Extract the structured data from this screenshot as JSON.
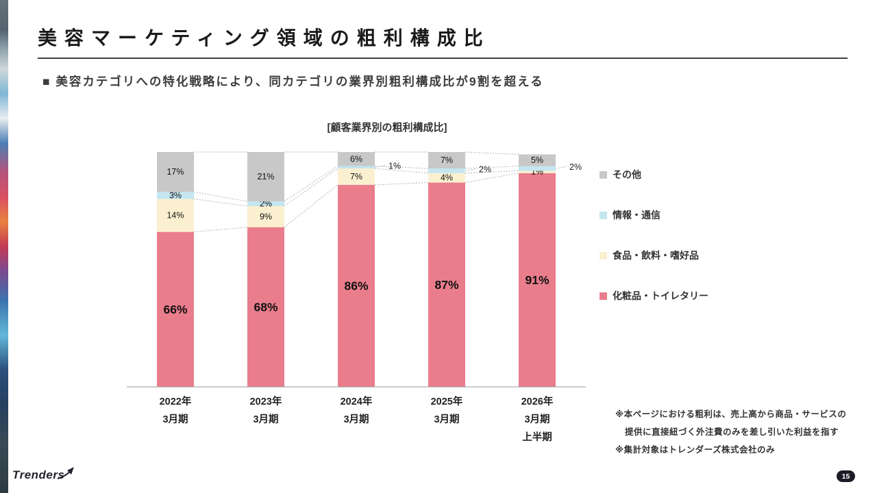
{
  "slide": {
    "title": "美容マーケティング領域の粗利構成比",
    "subtitle": "■ 美容カテゴリへの特化戦略により、同カテゴリの業界別粗利構成比が9割を超える",
    "page_number": "15",
    "logo_text": "Trenders"
  },
  "chart_data": {
    "type": "bar",
    "variant": "100%-stacked-column",
    "title": "[顧客業界別の粗利構成比]",
    "categories": [
      [
        "2022年",
        "3月期"
      ],
      [
        "2023年",
        "3月期"
      ],
      [
        "2024年",
        "3月期"
      ],
      [
        "2025年",
        "3月期"
      ],
      [
        "2026年",
        "3月期",
        "上半期"
      ]
    ],
    "unit": "%",
    "ylim": [
      0,
      100
    ],
    "grid": false,
    "legend_position": "right",
    "series": [
      {
        "name": "化粧品・トイレタリー",
        "color": "#ea7d8c",
        "values": [
          66,
          68,
          86,
          87,
          91
        ],
        "label_style": "large",
        "outside_labels": []
      },
      {
        "name": "食品・飲料・嗜好品",
        "color": "#faf0d0",
        "values": [
          14,
          9,
          7,
          4,
          1
        ],
        "label_style": "small",
        "outside_labels": []
      },
      {
        "name": "情報・通信",
        "color": "#c4e6f0",
        "values": [
          3,
          2,
          1,
          2,
          2
        ],
        "label_style": "small",
        "outside_labels": [
          2,
          3,
          4
        ]
      },
      {
        "name": "その他",
        "color": "#c8c8c8",
        "values": [
          17,
          21,
          6,
          7,
          5
        ],
        "label_style": "small",
        "outside_labels": []
      }
    ]
  },
  "legend": {
    "items": [
      {
        "label": "その他",
        "color": "#c8c8c8"
      },
      {
        "label": "情報・通信",
        "color": "#c4e6f0"
      },
      {
        "label": "食品・飲料・嗜好品",
        "color": "#faf0d0"
      },
      {
        "label": "化粧品・トイレタリー",
        "color": "#ea7d8c"
      }
    ]
  },
  "footnotes": {
    "line1": "※本ページにおける粗利は、売上高から商品・サービスの",
    "line2": "提供に直接紐づく外注費のみを差し引いた利益を指す",
    "line3": "※集計対象はトレンダーズ株式会社のみ"
  }
}
